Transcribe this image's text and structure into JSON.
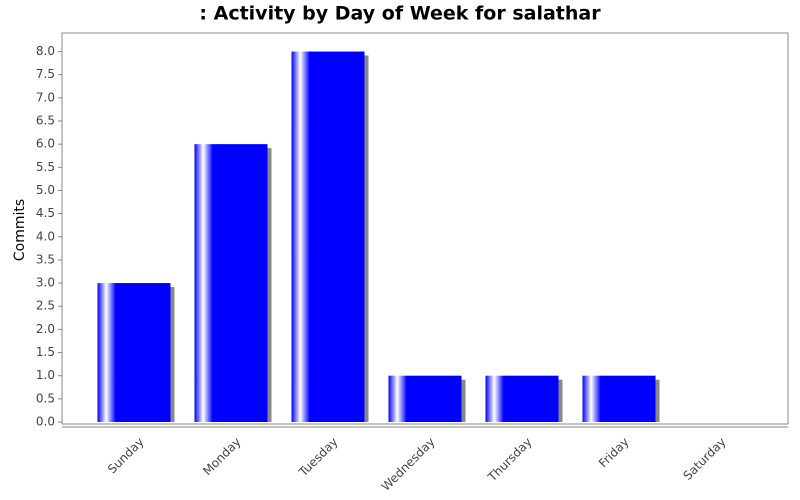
{
  "chart_data": {
    "type": "bar",
    "title": ": Activity by Day of Week for salathar",
    "y_label": "Commits",
    "categories": [
      "Sunday",
      "Monday",
      "Tuesday",
      "Wednesday",
      "Thursday",
      "Friday",
      "Saturday"
    ],
    "values": [
      3,
      6,
      8,
      1,
      1,
      1,
      0
    ],
    "color": "#0000ff",
    "ylim": [
      0,
      8.4
    ],
    "yticks": [
      {
        "value": 0,
        "label": "0.0"
      },
      {
        "value": 0.5,
        "label": "0.5"
      },
      {
        "value": 1,
        "label": "1.0"
      },
      {
        "value": 1.5,
        "label": "1.5"
      },
      {
        "value": 2,
        "label": "2.0"
      },
      {
        "value": 2.5,
        "label": "2.5"
      },
      {
        "value": 3,
        "label": "3.0"
      },
      {
        "value": 3.5,
        "label": "3.5"
      },
      {
        "value": 4,
        "label": "4.0"
      },
      {
        "value": 4.5,
        "label": "4.5"
      },
      {
        "value": 5,
        "label": "5.0"
      },
      {
        "value": 5.5,
        "label": "5.5"
      },
      {
        "value": 6,
        "label": "6.0"
      },
      {
        "value": 6.5,
        "label": "6.5"
      },
      {
        "value": 7,
        "label": "7.0"
      },
      {
        "value": 7.5,
        "label": "7.5"
      },
      {
        "value": 8,
        "label": "8.0"
      }
    ],
    "grid": false
  }
}
